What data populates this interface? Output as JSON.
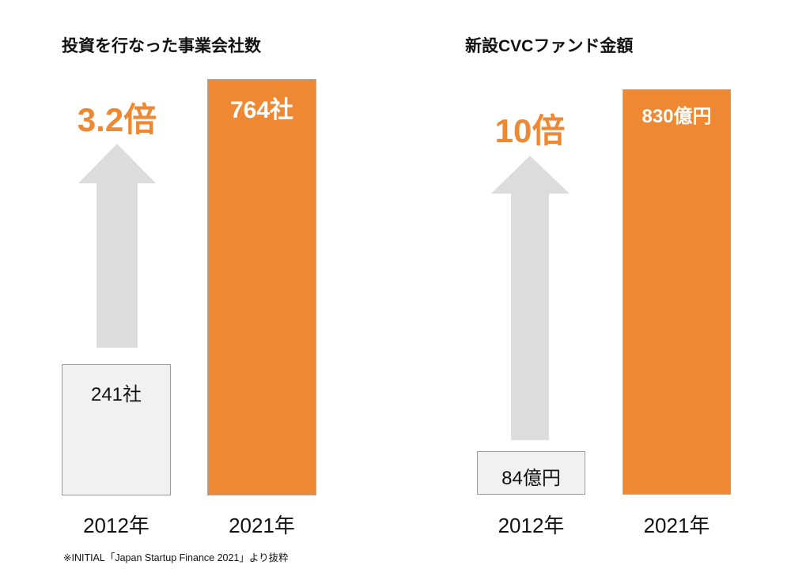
{
  "colors": {
    "accent": "#ee8833",
    "old_bar": "#f1f1f1",
    "arrow": "#dcdcdc"
  },
  "chart_data": [
    {
      "type": "bar",
      "title": "投資を行なった事業会社数",
      "categories": [
        "2012年",
        "2021年"
      ],
      "values": [
        241,
        764
      ],
      "data_labels": [
        "241社",
        "764社"
      ],
      "multiplier_label": "3.2倍",
      "ylim": [
        0,
        764
      ]
    },
    {
      "type": "bar",
      "title": "新設CVCファンド金額",
      "categories": [
        "2012年",
        "2021年"
      ],
      "values": [
        84,
        830
      ],
      "data_labels": [
        "84億円",
        "830億円"
      ],
      "multiplier_label": "10倍",
      "ylim": [
        0,
        830
      ]
    }
  ],
  "footnote": "※INITIAL「Japan Startup Finance 2021」より抜粋"
}
